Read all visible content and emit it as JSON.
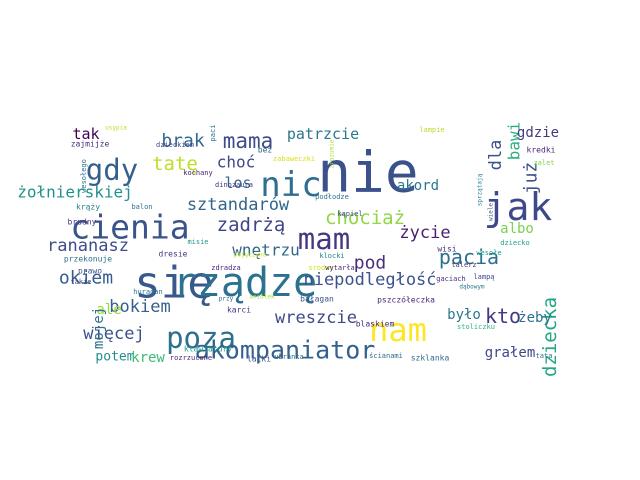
{
  "words": [
    {
      "text": "nie",
      "color": "#3b518b"
    },
    {
      "text": "jak",
      "color": "#3f4889"
    },
    {
      "text": "się",
      "color": "#38598c"
    },
    {
      "text": "rządzę",
      "color": "#2c718e"
    },
    {
      "text": "nam",
      "color": "#fde725"
    },
    {
      "text": "poza",
      "color": "#2e6f8e"
    },
    {
      "text": "akompaniator",
      "color": "#34618d"
    },
    {
      "text": "cienia",
      "color": "#3a538b"
    },
    {
      "text": "mam",
      "color": "#453781"
    },
    {
      "text": "nic",
      "color": "#2e6e8e"
    },
    {
      "text": "gdy",
      "color": "#355f8d"
    },
    {
      "text": "mama",
      "color": "#3e4a89"
    },
    {
      "text": "chociaż",
      "color": "#90d743"
    },
    {
      "text": "pacia",
      "color": "#2d708e"
    },
    {
      "text": "wnętrzu",
      "color": "#31688e"
    },
    {
      "text": "okiem",
      "color": "#365c8d"
    },
    {
      "text": "niepodległość",
      "color": "#3b528b"
    },
    {
      "text": "dziecka",
      "color": "#22a785"
    },
    {
      "text": "rananasz",
      "color": "#3d4d8a"
    },
    {
      "text": "zadrżą",
      "color": "#404588"
    },
    {
      "text": "życie",
      "color": "#481f70"
    },
    {
      "text": "sztandarów",
      "color": "#31678e"
    },
    {
      "text": "żołnierskiej",
      "color": "#21918c"
    },
    {
      "text": "tatę",
      "color": "#bddf26"
    },
    {
      "text": "brak",
      "color": "#31688e"
    },
    {
      "text": "choć",
      "color": "#3e4989"
    },
    {
      "text": "patrzcie",
      "color": "#2a788e"
    },
    {
      "text": "już",
      "color": "#3b528b"
    },
    {
      "text": "dla",
      "color": "#3b528b"
    },
    {
      "text": "bawi",
      "color": "#29af7f"
    },
    {
      "text": "gdzie",
      "color": "#443a83"
    },
    {
      "text": "tak",
      "color": "#440154"
    },
    {
      "text": "akord",
      "color": "#2a788e"
    },
    {
      "text": "los",
      "color": "#31688e"
    },
    {
      "text": "pod",
      "color": "#472d7b"
    },
    {
      "text": "albo",
      "color": "#7ad151"
    },
    {
      "text": "kto",
      "color": "#443983"
    },
    {
      "text": "wreszcie",
      "color": "#3e4a89"
    },
    {
      "text": "bokiem",
      "color": "#35608d"
    },
    {
      "text": "ale",
      "color": "#9bd93c"
    },
    {
      "text": "więcej",
      "color": "#3b528b"
    },
    {
      "text": "mojej",
      "color": "#2c728e"
    },
    {
      "text": "potem",
      "color": "#228c8d"
    },
    {
      "text": "krew",
      "color": "#3bbb75"
    },
    {
      "text": "było",
      "color": "#2a778e"
    },
    {
      "text": "żeby",
      "color": "#2d708e"
    },
    {
      "text": "grałem",
      "color": "#3f4889"
    },
    {
      "text": "usypia",
      "color": "#c2df23"
    },
    {
      "text": "zajmijże",
      "color": "#472d7b"
    },
    {
      "text": "dzieckiem",
      "color": "#3f4889"
    },
    {
      "text": "paci",
      "color": "#2c728e"
    },
    {
      "text": "bez",
      "color": "#30698e"
    },
    {
      "text": "zabaweczki",
      "color": "#d8e219"
    },
    {
      "text": "zrozumie",
      "color": "#aadc32"
    },
    {
      "text": "lampie",
      "color": "#b5de2b"
    },
    {
      "text": "zalet",
      "color": "#84d44b"
    },
    {
      "text": "kredki",
      "color": "#482475"
    },
    {
      "text": "kochany",
      "color": "#482475"
    },
    {
      "text": "wesołego",
      "color": "#2a788e"
    },
    {
      "text": "dinozaura",
      "color": "#46327e"
    },
    {
      "text": "podłodze",
      "color": "#2c728e"
    },
    {
      "text": "sprzątają",
      "color": "#26828e"
    },
    {
      "text": "wiele",
      "color": "#3b528b"
    },
    {
      "text": "krąży",
      "color": "#26828e"
    },
    {
      "text": "balon",
      "color": "#2c728e"
    },
    {
      "text": "kąpiel",
      "color": "#3e4a89"
    },
    {
      "text": "brudny",
      "color": "#453781"
    },
    {
      "text": "misie",
      "color": "#1f978b"
    },
    {
      "text": "dresie",
      "color": "#463480"
    },
    {
      "text": "klocki",
      "color": "#26818e"
    },
    {
      "text": "wisi",
      "color": "#472c7a"
    },
    {
      "text": "dziecko",
      "color": "#20a386"
    },
    {
      "text": "wesołe",
      "color": "#1fa088"
    },
    {
      "text": "talerz",
      "color": "#472d7b"
    },
    {
      "text": "przekonuje",
      "color": "#2d708e"
    },
    {
      "text": "zdradza",
      "color": "#482576"
    },
    {
      "text": "srodze",
      "color": "#d0e11c"
    },
    {
      "text": "wytarła",
      "color": "#482777"
    },
    {
      "text": "lampą",
      "color": "#404688"
    },
    {
      "text": "prawo",
      "color": "#3b528b"
    },
    {
      "text": "gaciach",
      "color": "#46327e"
    },
    {
      "text": "takie",
      "color": "#3f4889"
    },
    {
      "text": "huragan",
      "color": "#2a788e"
    },
    {
      "text": "przy",
      "color": "#31688e"
    },
    {
      "text": "aniołek",
      "color": "#a5db36"
    },
    {
      "text": "bałagan",
      "color": "#3b528b"
    },
    {
      "text": "pszczółeczka",
      "color": "#482878"
    },
    {
      "text": "karci",
      "color": "#46337f"
    },
    {
      "text": "stoliczku",
      "color": "#2fb47c"
    },
    {
      "text": "klawiatury",
      "color": "#1f9e89"
    },
    {
      "text": "blaskiem",
      "color": "#482878"
    },
    {
      "text": "rozrzucone",
      "color": "#482475"
    },
    {
      "text": "lalki",
      "color": "#3b528b"
    },
    {
      "text": "ubranka",
      "color": "#2e6e8e"
    },
    {
      "text": "ścianami",
      "color": "#31688e"
    },
    {
      "text": "szklanka",
      "color": "#31688e"
    },
    {
      "text": "tata",
      "color": "#2c728e"
    },
    {
      "text": "dąbowym",
      "color": "#2a788e"
    },
    {
      "text": "pajęczyna",
      "color": "#c8e020"
    }
  ]
}
